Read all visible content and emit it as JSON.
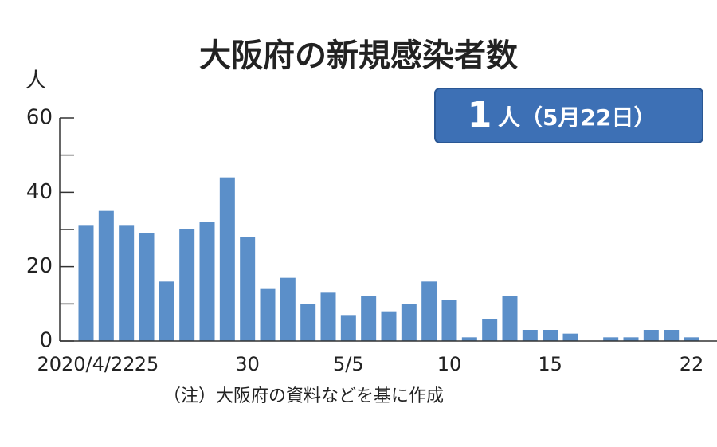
{
  "chart_data": {
    "type": "bar",
    "title": "大阪府の新規感染者数",
    "y_unit": "人",
    "badge_value": "1",
    "badge_text": "人（5月22日）",
    "note": "（注）大阪府の資料などを基に作成",
    "categories": [
      "2020/4/22",
      null,
      null,
      "25",
      null,
      null,
      null,
      null,
      "30",
      null,
      null,
      null,
      null,
      "5/5",
      null,
      null,
      null,
      null,
      "10",
      null,
      null,
      null,
      null,
      "15",
      null,
      null,
      null,
      null,
      null,
      null,
      "22"
    ],
    "values": [
      31,
      35,
      31,
      29,
      16,
      30,
      32,
      44,
      28,
      14,
      17,
      10,
      13,
      7,
      12,
      8,
      10,
      16,
      11,
      1,
      6,
      12,
      3,
      3,
      2,
      0,
      1,
      1,
      3,
      3,
      1
    ],
    "color": "#5b8fc9",
    "ylim": [
      0,
      60
    ],
    "yticks": [
      0,
      20,
      40,
      60
    ],
    "minor_yticks": [
      10,
      30,
      50
    ]
  }
}
